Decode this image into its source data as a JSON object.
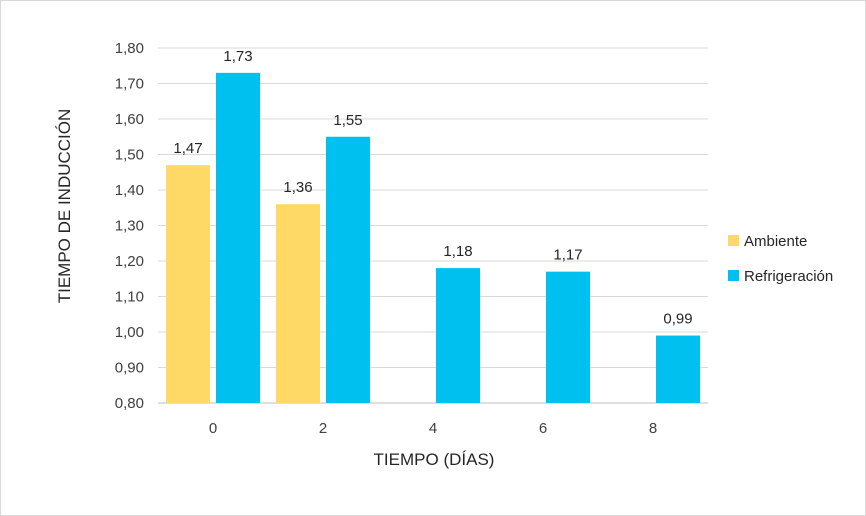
{
  "chart_data": {
    "type": "bar",
    "title": "",
    "xlabel": "TIEMPO (DÍAS)",
    "ylabel": "TIEMPO DE INDUCCIÓN",
    "ylim": [
      0.8,
      1.8
    ],
    "yticks": [
      0.8,
      0.9,
      1.0,
      1.1,
      1.2,
      1.3,
      1.4,
      1.5,
      1.6,
      1.7,
      1.8
    ],
    "ytick_labels": [
      "0,80",
      "0,90",
      "1,00",
      "1,10",
      "1,20",
      "1,30",
      "1,40",
      "1,50",
      "1,60",
      "1,70",
      "1,80"
    ],
    "categories": [
      "0",
      "2",
      "4",
      "6",
      "8"
    ],
    "grid": true,
    "legend_position": "right",
    "series": [
      {
        "name": "Ambiente",
        "color": "#FFD966",
        "values": [
          1.47,
          1.36,
          null,
          null,
          null
        ],
        "labels": [
          "1,47",
          "1,36",
          "",
          "",
          ""
        ]
      },
      {
        "name": "Refrigeración",
        "color": "#00C0F0",
        "values": [
          1.73,
          1.55,
          1.18,
          1.17,
          0.99
        ],
        "labels": [
          "1,73",
          "1,55",
          "1,18",
          "1,17",
          "0,99"
        ]
      }
    ]
  }
}
